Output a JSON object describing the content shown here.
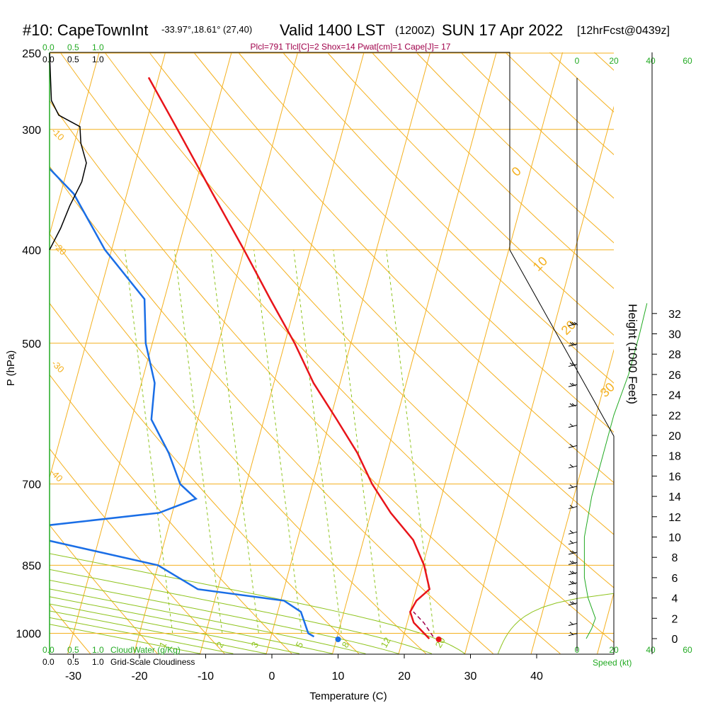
{
  "header": {
    "station": "#10: CapeTownInt",
    "coords": "-33.97°,18.61° (27,40)",
    "valid": "Valid 1400 LST",
    "zulu": "(1200Z)",
    "date": "SUN 17 Apr 2022",
    "forecast": "[12hrFcst@0439z]"
  },
  "indices": "Plcl=791 Tlcl[C]=2 Shox=14 Pwat[cm]=1 Cape[J]= 17",
  "scale_top_green": [
    "0.0",
    "0.5",
    "1.0"
  ],
  "scale_top_black": [
    "0.0",
    "0.5",
    "1.0"
  ],
  "cloud_water_label": "CloudWater (g/Kg)",
  "cloudiness_label": "Grid-Scale Cloudiness",
  "speed_ticks": [
    "0",
    "20",
    "40",
    "60"
  ],
  "speed_label": "Speed (kt)",
  "colors": {
    "temperature": "#e8141a",
    "dewpoint": "#1a6ee6",
    "isobar": "#f4b01e",
    "moist_adiabat": "#8fc41e",
    "mixing_ratio": "#8fc41e",
    "cloud_water": "#22aa22",
    "wind_speed": "#22aa22"
  },
  "chart_data": {
    "type": "skew-T log-P sounding",
    "xlabel": "Temperature (C)",
    "ylabel": "P (hPa)",
    "right_axis_label": "Height (1000 Feet)",
    "x_ticks": [
      -30,
      -20,
      -10,
      0,
      10,
      20,
      30,
      40
    ],
    "pressure_ticks": [
      250,
      300,
      400,
      500,
      700,
      850,
      1000
    ],
    "height_ticks": [
      0,
      2,
      4,
      6,
      8,
      10,
      12,
      14,
      16,
      18,
      20,
      22,
      24,
      26,
      28,
      30,
      32
    ],
    "isotherm_labels": [
      "0",
      "10",
      "20",
      "30"
    ],
    "left_isotherm_labels": [
      "-10",
      "-20",
      "-30",
      "-40"
    ],
    "mixing_ratio_labels": [
      "1",
      "2",
      "3",
      "5",
      "8",
      "12",
      "20"
    ],
    "temperature_profile": [
      {
        "p": 1013,
        "t": 24.0
      },
      {
        "p": 1000,
        "t": 23.0
      },
      {
        "p": 975,
        "t": 21.0
      },
      {
        "p": 950,
        "t": 20.0
      },
      {
        "p": 925,
        "t": 20.5
      },
      {
        "p": 900,
        "t": 22.0
      },
      {
        "p": 850,
        "t": 20.2
      },
      {
        "p": 800,
        "t": 17.5
      },
      {
        "p": 750,
        "t": 13.0
      },
      {
        "p": 700,
        "t": 9.0
      },
      {
        "p": 650,
        "t": 5.5
      },
      {
        "p": 600,
        "t": 1.0
      },
      {
        "p": 550,
        "t": -4.0
      },
      {
        "p": 500,
        "t": -8.5
      },
      {
        "p": 450,
        "t": -14.0
      },
      {
        "p": 400,
        "t": -20.0
      },
      {
        "p": 350,
        "t": -27.0
      },
      {
        "p": 300,
        "t": -35.0
      },
      {
        "p": 265,
        "t": -41.5
      }
    ],
    "dewpoint_profile": [
      {
        "p": 1008,
        "t": 6.5
      },
      {
        "p": 1000,
        "t": 5.5
      },
      {
        "p": 950,
        "t": 3.5
      },
      {
        "p": 925,
        "t": 0.5
      },
      {
        "p": 900,
        "t": -13.0
      },
      {
        "p": 850,
        "t": -20.0
      },
      {
        "p": 800,
        "t": -38.0
      },
      {
        "p": 775,
        "t": -40.0
      },
      {
        "p": 750,
        "t": -22.0
      },
      {
        "p": 725,
        "t": -17.0
      },
      {
        "p": 700,
        "t": -20.0
      },
      {
        "p": 650,
        "t": -23.0
      },
      {
        "p": 600,
        "t": -27.0
      },
      {
        "p": 550,
        "t": -28.0
      },
      {
        "p": 500,
        "t": -31.0
      },
      {
        "p": 450,
        "t": -33.0
      },
      {
        "p": 400,
        "t": -41.0
      },
      {
        "p": 350,
        "t": -48.0
      },
      {
        "p": 300,
        "t": -60.0
      },
      {
        "p": 265,
        "t": -70.0
      }
    ],
    "parcel_trace": [
      {
        "p": 1008,
        "t": 24.5
      },
      {
        "p": 975,
        "t": 22.5
      },
      {
        "p": 950,
        "t": 20.5
      }
    ],
    "surface_temperature_marker": 25.2,
    "surface_dewpoint_marker": 10.0,
    "cloud_water_curve": [
      {
        "p": 400,
        "v": 0.0
      },
      {
        "p": 380,
        "v": 0.12
      },
      {
        "p": 360,
        "v": 0.22
      },
      {
        "p": 340,
        "v": 0.35
      },
      {
        "p": 325,
        "v": 0.4
      },
      {
        "p": 310,
        "v": 0.34
      },
      {
        "p": 298,
        "v": 0.33
      },
      {
        "p": 290,
        "v": 0.1
      },
      {
        "p": 280,
        "v": 0.02
      },
      {
        "p": 250,
        "v": 0.0
      }
    ],
    "wind_speed_profile_kt": [
      {
        "h": 0,
        "v": 5
      },
      {
        "h": 1,
        "v": 8
      },
      {
        "h": 2,
        "v": 10
      },
      {
        "h": 4,
        "v": 6
      },
      {
        "h": 6,
        "v": 4
      },
      {
        "h": 10,
        "v": 4
      },
      {
        "h": 14,
        "v": 8
      },
      {
        "h": 18,
        "v": 14
      },
      {
        "h": 22,
        "v": 20
      },
      {
        "h": 26,
        "v": 28
      },
      {
        "h": 30,
        "v": 34
      },
      {
        "h": 33,
        "v": 38
      }
    ],
    "wind_barbs": [
      {
        "h": 0.5,
        "speed": 5
      },
      {
        "h": 1.5,
        "speed": 10
      },
      {
        "h": 3.5,
        "speed": 15
      },
      {
        "h": 4.5,
        "speed": 15
      },
      {
        "h": 5.5,
        "speed": 15
      },
      {
        "h": 6.5,
        "speed": 15
      },
      {
        "h": 7.5,
        "speed": 15
      },
      {
        "h": 8.5,
        "speed": 15
      },
      {
        "h": 9.5,
        "speed": 10
      },
      {
        "h": 10.5,
        "speed": 10
      },
      {
        "h": 13,
        "speed": 10
      },
      {
        "h": 15,
        "speed": 10
      },
      {
        "h": 17,
        "speed": 10
      },
      {
        "h": 19,
        "speed": 10
      },
      {
        "h": 21,
        "speed": 10
      },
      {
        "h": 23,
        "speed": 15
      },
      {
        "h": 25,
        "speed": 15
      },
      {
        "h": 27,
        "speed": 15
      },
      {
        "h": 29,
        "speed": 20
      },
      {
        "h": 31,
        "speed": 25
      }
    ]
  }
}
